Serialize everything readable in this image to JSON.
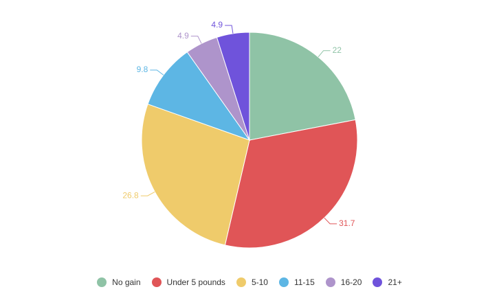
{
  "chart_data": {
    "type": "pie",
    "categories": [
      "No gain",
      "Under 5 pounds",
      "5-10",
      "11-15",
      "16-20",
      "21+"
    ],
    "values": [
      22,
      31.7,
      26.8,
      9.8,
      4.9,
      4.9
    ],
    "colors": [
      "#8fc3a6",
      "#e05557",
      "#efcb6b",
      "#5db6e4",
      "#ae94cb",
      "#6f53db"
    ],
    "legend": "bottom"
  }
}
